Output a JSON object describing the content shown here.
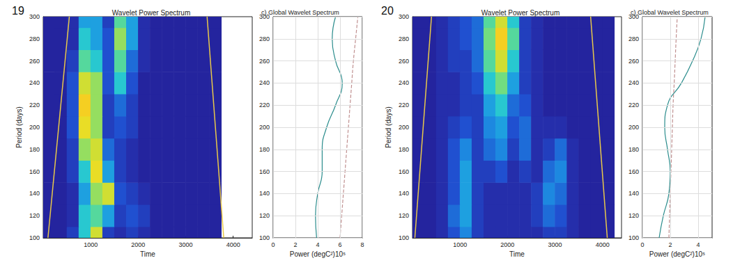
{
  "chart_data": [
    {
      "type": "heatmap",
      "panel_label": "19",
      "title": "Wavelet Power Spectrum",
      "x_label": "Time",
      "y_label": "Period (days)",
      "xlim": [
        0,
        4400
      ],
      "xticks": [
        1000,
        2000,
        3000,
        4000
      ],
      "ylim": [
        100,
        300
      ],
      "yticks": [
        100,
        120,
        140,
        160,
        180,
        200,
        220,
        240,
        260,
        280,
        300
      ],
      "grid": false,
      "x": [
        125,
        375,
        625,
        875,
        1125,
        1375,
        1625,
        1875,
        2125,
        2375,
        2625,
        2875,
        3125,
        3375,
        3625
      ],
      "y": [
        100,
        120,
        140,
        160,
        180,
        200,
        220,
        240,
        260,
        280,
        300
      ],
      "cells": [
        [
          1,
          1,
          2,
          5,
          8,
          2,
          1.5,
          2,
          1.5,
          1,
          1,
          1,
          1,
          1,
          1
        ],
        [
          1,
          1,
          1.5,
          5,
          6,
          4,
          2,
          2.5,
          2,
          1,
          1,
          1,
          1,
          1,
          1
        ],
        [
          1,
          1,
          1.5,
          4,
          7,
          8,
          2.5,
          2,
          1.5,
          1,
          1,
          1,
          1,
          1,
          1
        ],
        [
          1,
          1,
          2,
          5,
          8.5,
          4,
          2,
          1.5,
          1,
          1,
          1,
          1,
          1,
          1,
          1
        ],
        [
          1,
          1,
          2,
          7,
          8,
          3,
          2,
          1.5,
          1,
          1,
          1,
          1,
          1,
          1,
          1
        ],
        [
          1,
          1,
          2.5,
          8.5,
          7,
          2,
          2.5,
          2,
          1,
          1,
          1,
          1,
          1,
          1,
          1
        ],
        [
          1,
          1,
          2.5,
          9,
          7,
          2,
          3,
          2,
          1,
          1,
          1,
          1,
          1,
          1,
          1
        ],
        [
          1,
          1,
          2.5,
          8,
          7,
          2.5,
          5,
          2.5,
          1,
          1,
          1,
          1,
          1,
          1,
          1
        ],
        [
          1,
          1,
          2,
          6,
          5,
          2.5,
          6,
          3,
          1.5,
          1,
          1,
          1,
          1,
          1,
          1
        ],
        [
          1,
          1,
          1.5,
          5,
          4,
          2.5,
          7,
          4,
          1.5,
          1,
          1,
          1,
          1,
          1,
          1
        ],
        [
          1,
          1,
          1.5,
          4,
          4,
          2,
          6,
          4,
          1.5,
          1,
          1,
          1,
          1,
          1,
          1
        ]
      ],
      "color_range": [
        0,
        10
      ],
      "lines": [
        {
          "x": [
            100,
            550
          ],
          "y": [
            100,
            300
          ],
          "color": "#e8c84a"
        },
        {
          "x": [
            3800,
            3450
          ],
          "y": [
            100,
            300
          ],
          "color": "#e8c84a"
        }
      ]
    },
    {
      "type": "line",
      "title": "c) Global Wavelet Spectrum",
      "x_label": "Power (degC²)10⁵",
      "xlim": [
        0,
        8
      ],
      "xticks": [
        0,
        2,
        4,
        6,
        8
      ],
      "ylim": [
        100,
        300
      ],
      "yticks": [
        100,
        120,
        140,
        160,
        180,
        200,
        220,
        240,
        260,
        280,
        300
      ],
      "grid": true,
      "series": [
        {
          "color": "#2a8c8c",
          "line_style": "solid",
          "x": [
            3.9,
            3.8,
            4.0,
            4.4,
            4.4,
            4.8,
            5.6,
            6.2,
            5.6,
            5.3,
            5.6
          ],
          "y": [
            100,
            120,
            140,
            160,
            180,
            200,
            220,
            240,
            260,
            280,
            300
          ]
        },
        {
          "color": "#c09090",
          "line_style": "dashed",
          "x": [
            6.0,
            6.15,
            6.3,
            6.45,
            6.6,
            6.75,
            6.9,
            7.05,
            7.2,
            7.4,
            7.6
          ],
          "y": [
            100,
            120,
            140,
            160,
            180,
            200,
            220,
            240,
            260,
            280,
            300
          ]
        }
      ]
    },
    {
      "type": "heatmap",
      "panel_label": "20",
      "title": "Wavelet Power Spectrum",
      "x_label": "Time",
      "y_label": "Period (days)",
      "xlim": [
        0,
        4400
      ],
      "xticks": [
        1000,
        2000,
        3000,
        4000
      ],
      "ylim": [
        100,
        300
      ],
      "yticks": [
        100,
        120,
        140,
        160,
        180,
        200,
        220,
        240,
        260,
        280,
        300
      ],
      "grid": false,
      "x": [
        125,
        375,
        625,
        875,
        1125,
        1375,
        1625,
        1875,
        2125,
        2375,
        2625,
        2875,
        3125,
        3375,
        3625,
        3875,
        4125
      ],
      "y": [
        100,
        120,
        140,
        160,
        180,
        200,
        220,
        240,
        260,
        280,
        300
      ],
      "cells": [
        [
          1,
          1,
          1.5,
          2.5,
          3.5,
          2,
          1.5,
          1.5,
          1.5,
          1.5,
          1.5,
          2,
          2,
          1.5,
          1,
          1,
          1
        ],
        [
          1,
          1,
          1.5,
          3,
          4,
          2,
          1.5,
          1.5,
          1.5,
          1.5,
          2,
          3,
          2.5,
          1.5,
          1,
          1,
          1
        ],
        [
          1,
          1,
          1.5,
          2.5,
          4,
          2,
          1.5,
          1.5,
          1.5,
          1.5,
          2,
          3.5,
          3,
          1.5,
          1,
          1,
          1
        ],
        [
          1,
          1,
          1.5,
          2.5,
          4,
          2,
          2,
          2.5,
          1.5,
          2,
          1.5,
          3,
          3.5,
          1.5,
          1,
          1,
          1
        ],
        [
          1,
          1,
          1.5,
          2.5,
          3.5,
          2,
          3,
          3.5,
          2,
          3,
          1.5,
          2,
          3,
          1.5,
          1,
          1,
          1
        ],
        [
          1,
          1,
          1.5,
          2,
          2.5,
          2,
          3.5,
          4,
          2.5,
          3,
          1.5,
          1.5,
          1.5,
          1,
          1,
          1,
          1
        ],
        [
          1,
          1,
          1.5,
          1.5,
          2,
          2,
          4,
          5,
          3,
          2.5,
          1.5,
          1,
          1,
          1,
          1,
          1,
          1
        ],
        [
          1,
          1,
          1.5,
          1.5,
          2,
          2.5,
          5,
          6.5,
          4,
          2,
          1.5,
          1,
          1,
          1,
          1,
          1,
          1
        ],
        [
          1,
          1,
          1.5,
          2,
          2,
          3,
          6,
          8,
          5,
          2,
          1.5,
          1,
          1,
          1,
          1,
          1,
          1
        ],
        [
          1,
          1,
          1.5,
          2,
          2.5,
          3,
          6.5,
          9,
          6,
          2,
          1.5,
          1,
          1,
          1,
          1,
          1,
          1
        ],
        [
          1,
          1,
          1.5,
          2,
          2.5,
          3,
          6,
          8,
          5,
          2,
          1.5,
          1,
          1,
          1,
          1,
          1,
          1
        ]
      ],
      "color_range": [
        0,
        10
      ],
      "lines": [
        {
          "x": [
            50,
            400
          ],
          "y": [
            100,
            300
          ],
          "color": "#e8c84a"
        },
        {
          "x": [
            4100,
            3750
          ],
          "y": [
            100,
            300
          ],
          "color": "#e8c84a"
        }
      ]
    },
    {
      "type": "line",
      "title": "c) Global Wavelet Spectrum",
      "x_label": "Power (degC²)10⁵",
      "xlim": [
        0,
        5
      ],
      "xticks": [
        0,
        2,
        4
      ],
      "ylim": [
        100,
        300
      ],
      "yticks": [
        100,
        120,
        140,
        160,
        180,
        200,
        220,
        240,
        260,
        280,
        300
      ],
      "grid": true,
      "series": [
        {
          "color": "#2a8c8c",
          "line_style": "solid",
          "x": [
            1.2,
            1.5,
            1.9,
            2.0,
            1.8,
            1.6,
            1.8,
            2.8,
            3.6,
            4.2,
            4.5
          ],
          "y": [
            100,
            120,
            140,
            160,
            180,
            200,
            220,
            240,
            260,
            280,
            300
          ]
        },
        {
          "color": "#c09090",
          "line_style": "dashed",
          "x": [
            1.9,
            1.95,
            2.0,
            2.05,
            2.1,
            2.15,
            2.2,
            2.28,
            2.35,
            2.42,
            2.5
          ],
          "y": [
            100,
            120,
            140,
            160,
            180,
            200,
            220,
            240,
            260,
            280,
            300
          ]
        }
      ]
    }
  ]
}
